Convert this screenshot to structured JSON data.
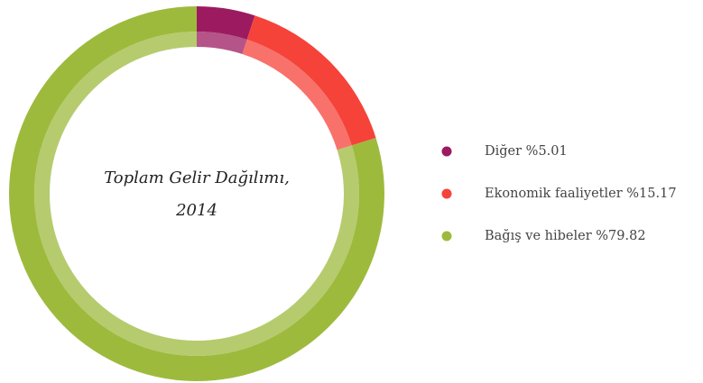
{
  "chart_data": {
    "type": "donut",
    "title": "Toplam Gelir Dağılımı, 2014",
    "categories": [
      "Diğer",
      "Ekonomik faaliyetler",
      "Bağış ve hibeler"
    ],
    "values": [
      5.01,
      15.17,
      79.82
    ],
    "value_labels": [
      "%5.01",
      "%15.17",
      "%79.82"
    ],
    "colors": [
      "#9c1b60",
      "#f5433a",
      "#9eba3d"
    ],
    "legend": "right"
  }
}
